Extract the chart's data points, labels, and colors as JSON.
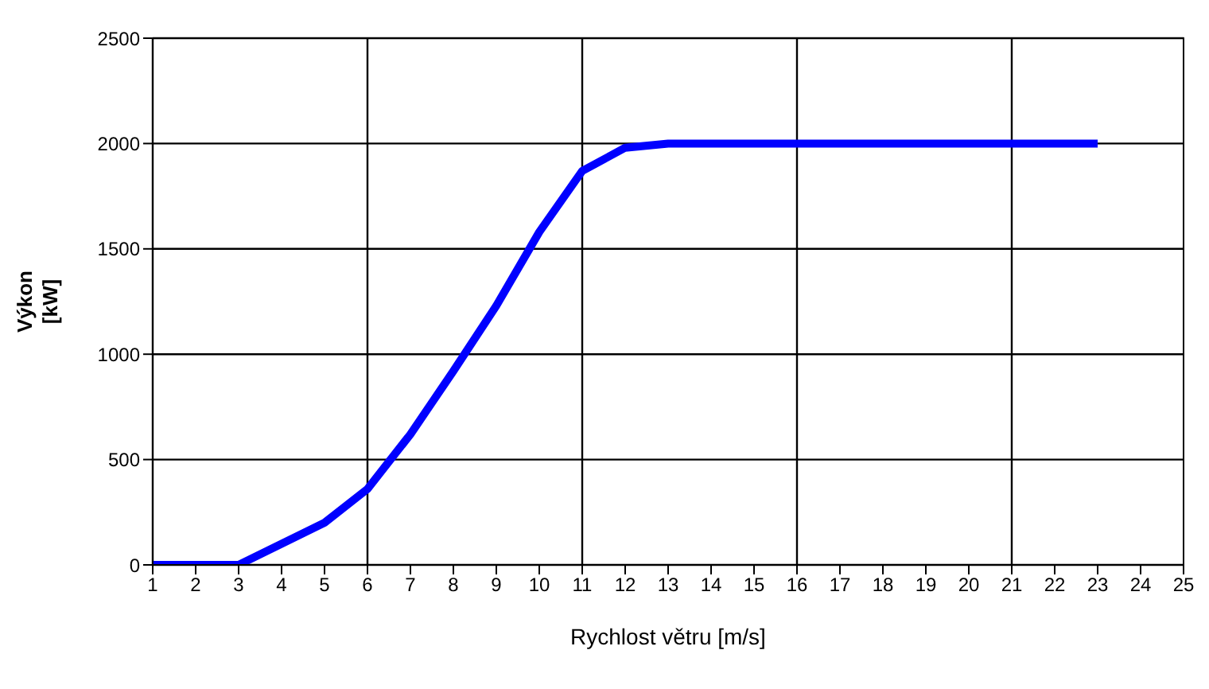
{
  "chart_data": {
    "type": "line",
    "xlabel": "Rychlost větru [m/s]",
    "ylabel": "Výkon [kW]",
    "x": [
      1,
      2,
      3,
      4,
      5,
      6,
      7,
      8,
      9,
      10,
      11,
      12,
      13,
      14,
      15,
      16,
      17,
      18,
      19,
      20,
      21,
      22,
      23
    ],
    "series": [
      {
        "color": "#0000ff",
        "values": [
          0,
          0,
          0,
          100,
          200,
          360,
          620,
          920,
          1230,
          1580,
          1870,
          1980,
          2000,
          2000,
          2000,
          2000,
          2000,
          2000,
          2000,
          2000,
          2000,
          2000,
          2000
        ]
      }
    ],
    "xlim": [
      1,
      25
    ],
    "xticks": [
      1,
      2,
      3,
      4,
      5,
      6,
      7,
      8,
      9,
      10,
      11,
      12,
      13,
      14,
      15,
      16,
      17,
      18,
      19,
      20,
      21,
      22,
      23,
      24,
      25
    ],
    "ylim": [
      0,
      2500
    ],
    "yticks": [
      0,
      500,
      1000,
      1500,
      2000,
      2500
    ],
    "grid": true,
    "marker": "none",
    "line_style": "solid",
    "legend": false
  }
}
